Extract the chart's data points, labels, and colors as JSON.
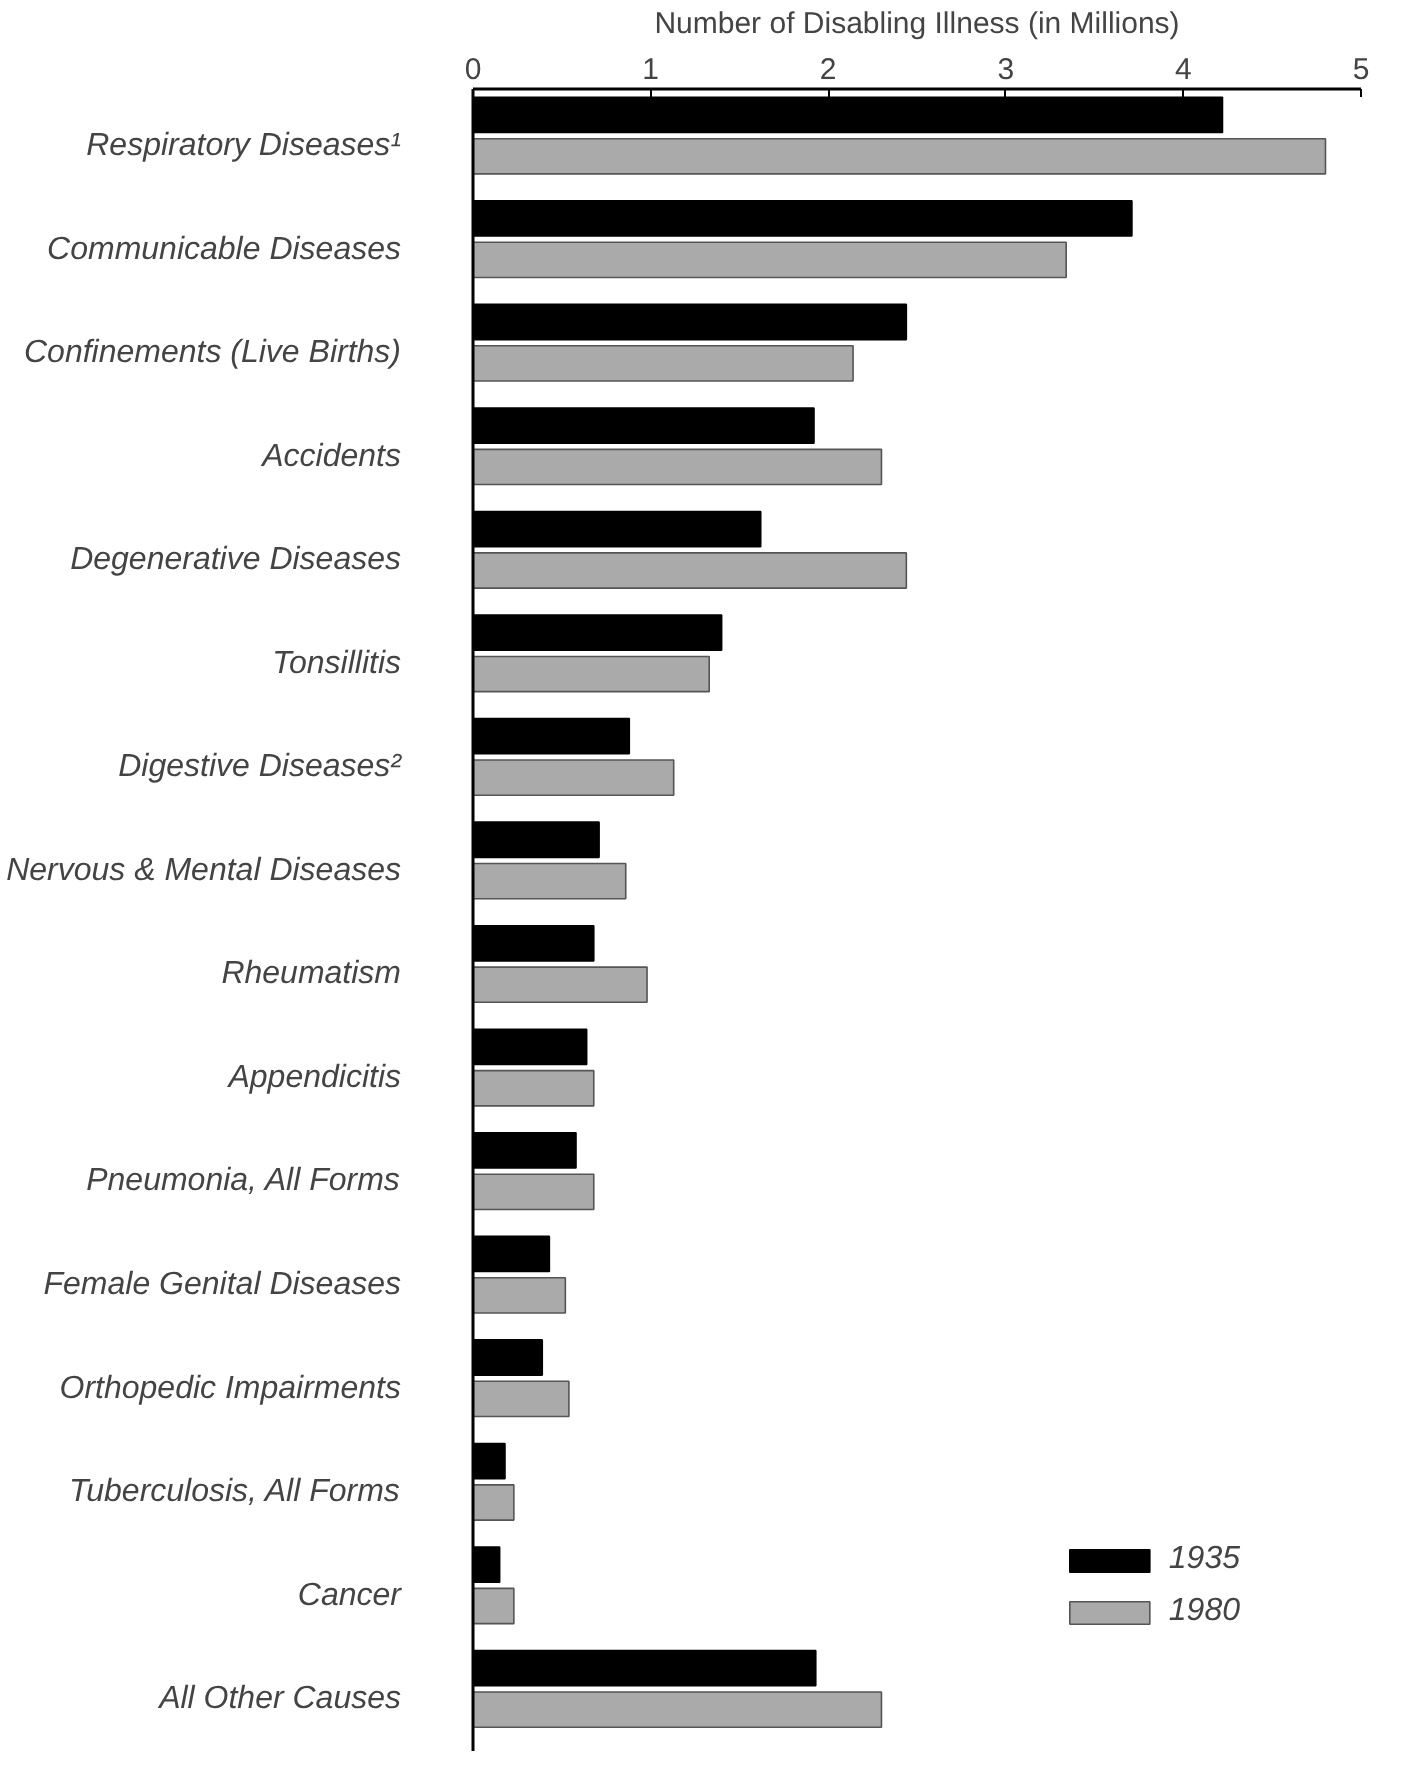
{
  "chart_data": {
    "type": "bar",
    "orientation": "horizontal",
    "xlabel": "Number of Disabling Illness (in Millions)",
    "categories": [
      "Respiratory Diseases¹",
      "Communicable Diseases",
      "Confinements (Live Births)",
      "Accidents",
      "Degenerative Diseases",
      "Tonsillitis",
      "Digestive Diseases²",
      "Nervous & Mental Diseases",
      "Rheumatism",
      "Appendicitis",
      "Pneumonia, All Forms",
      "Female Genital Diseases",
      "Orthopedic Impairments",
      "Tuberculosis, All Forms",
      "Cancer",
      "All Other Causes"
    ],
    "series": [
      {
        "name": "1935",
        "color": "#000000",
        "values": [
          4.22,
          3.71,
          2.44,
          1.92,
          1.62,
          1.4,
          0.88,
          0.71,
          0.68,
          0.64,
          0.58,
          0.43,
          0.39,
          0.18,
          0.15,
          1.93
        ]
      },
      {
        "name": "1980",
        "color": "#aaaaaa",
        "values": [
          4.8,
          3.34,
          2.14,
          2.3,
          2.44,
          1.33,
          1.13,
          0.86,
          0.98,
          0.68,
          0.68,
          0.52,
          0.54,
          0.23,
          0.23,
          2.3
        ]
      }
    ],
    "xlim": [
      0,
      5
    ],
    "xticks": [
      0,
      1,
      2,
      3,
      4,
      5
    ],
    "grid": false,
    "legend": "bottom right"
  }
}
